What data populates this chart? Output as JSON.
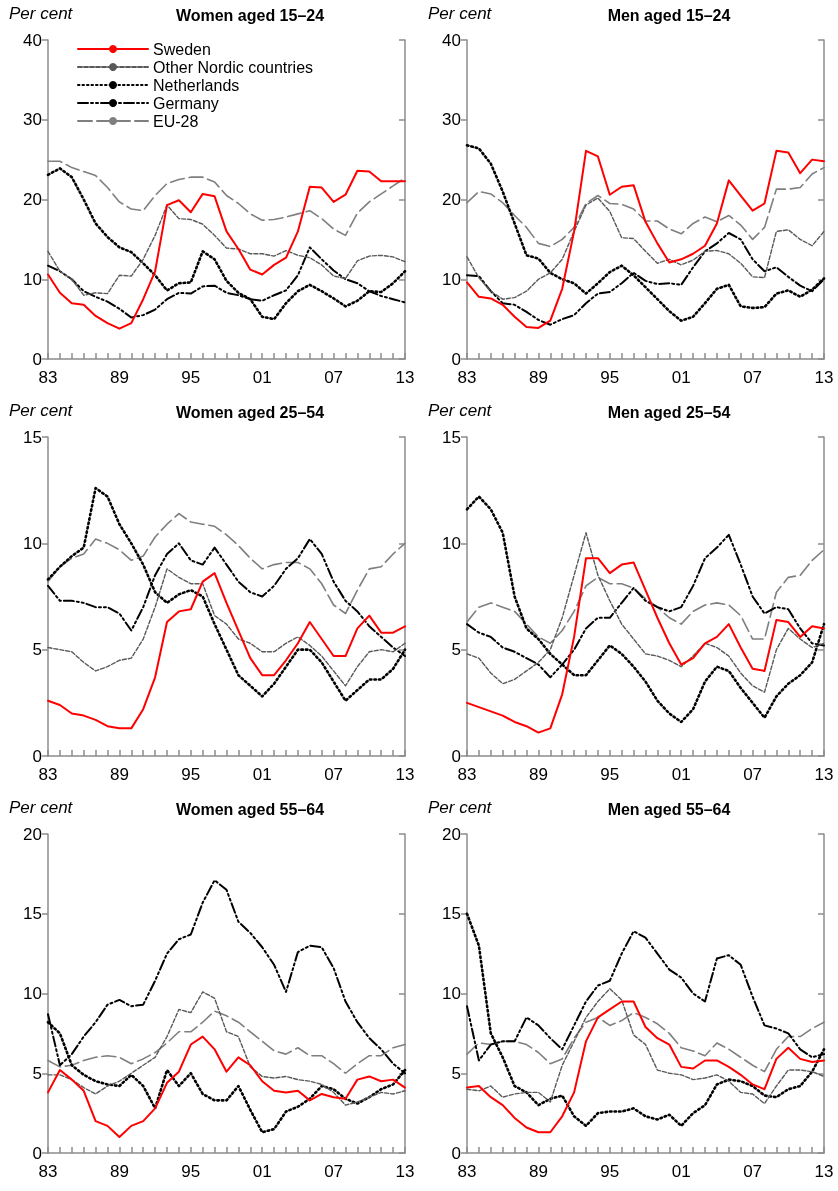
{
  "chart_data": [
    {
      "type": "line",
      "title": "Women aged 15–24",
      "ylabel": "Per cent",
      "categories": [
        "83",
        null,
        null,
        null,
        null,
        null,
        "89",
        null,
        null,
        null,
        null,
        null,
        "95",
        null,
        null,
        null,
        null,
        null,
        "01",
        null,
        null,
        null,
        null,
        null,
        "07",
        null,
        null,
        null,
        null,
        null,
        "13"
      ],
      "ylim": [
        0,
        40
      ],
      "yticks": [
        0,
        10,
        20,
        30,
        40
      ],
      "grid": false,
      "legend": "top left",
      "marker": "none",
      "series": [
        {
          "name": "Sweden",
          "color": "#ff0000",
          "line_style": "solid",
          "values": [
            10.6,
            8.3,
            7.0,
            6.8,
            5.4,
            4.5,
            3.8,
            4.5,
            7.5,
            11,
            19.3,
            19.9,
            18.4,
            20.7,
            20.4,
            16,
            13.8,
            11.2,
            10.6,
            11.8,
            12.7,
            16,
            21.6,
            21.5,
            19.7,
            20.6,
            23.6,
            23.5,
            22.3,
            22.3,
            22.3
          ]
        },
        {
          "name": "Other Nordic countries",
          "color": "#595959",
          "line_style": "dashed",
          "values": [
            13.5,
            11,
            10,
            8.0,
            8.3,
            8.2,
            10.5,
            10.4,
            12.5,
            15.5,
            19.3,
            17.6,
            17.5,
            16.9,
            15.5,
            13.9,
            13.8,
            13.2,
            13.2,
            12.9,
            13.6,
            13.0,
            12.7,
            11.8,
            10.4,
            10.1,
            12.3,
            12.9,
            13.0,
            12.8,
            12.2
          ]
        },
        {
          "name": "Netherlands",
          "color": "#000000",
          "line_style": "dotted",
          "values": [
            23.1,
            23.9,
            22.8,
            20,
            17,
            15.3,
            14,
            13.4,
            12,
            10.5,
            8.6,
            9.5,
            9.6,
            13.5,
            12.5,
            9.8,
            8.3,
            7.5,
            5.3,
            5.0,
            7.0,
            8.5,
            9.3,
            8.5,
            7.6,
            6.6,
            7.3,
            8.5,
            8.4,
            9.5,
            11
          ]
        },
        {
          "name": "Germany",
          "color": "#000000",
          "line_style": "dashdot",
          "values": [
            11.7,
            11,
            10,
            8.5,
            7.8,
            7.2,
            6.3,
            5.2,
            5.5,
            6.2,
            7.5,
            8.3,
            8.2,
            9.1,
            9.2,
            8.3,
            8.0,
            7.5,
            7.3,
            8.0,
            8.6,
            10.5,
            14,
            12.5,
            11.1,
            10.0,
            9.5,
            8.5,
            7.9,
            7.5,
            7.1
          ]
        },
        {
          "name": "EU-28",
          "color": "#7f7f7f",
          "line_style": "longdash",
          "values": [
            24.8,
            24.8,
            24,
            23.5,
            23,
            21.5,
            19.7,
            18.8,
            18.6,
            20.5,
            22,
            22.5,
            22.8,
            22.8,
            22.2,
            20.5,
            19.5,
            18.2,
            17.4,
            17.5,
            17.8,
            18.2,
            18.6,
            17.6,
            16.3,
            15.5,
            18.3,
            19.7,
            20.7,
            21.7,
            22.7
          ]
        }
      ]
    },
    {
      "type": "line",
      "title": "Men aged 15–24",
      "ylabel": "Per cent",
      "categories": [
        "83",
        null,
        null,
        null,
        null,
        null,
        "89",
        null,
        null,
        null,
        null,
        null,
        "95",
        null,
        null,
        null,
        null,
        null,
        "01",
        null,
        null,
        null,
        null,
        null,
        "07",
        null,
        null,
        null,
        null,
        null,
        "13"
      ],
      "ylim": [
        0,
        40
      ],
      "yticks": [
        0,
        10,
        20,
        30,
        40
      ],
      "grid": false,
      "marker": "none",
      "series": [
        {
          "color": "#ff0000",
          "line_style": "solid",
          "values": [
            9.6,
            7.8,
            7.6,
            6.8,
            5.3,
            4.0,
            3.9,
            4.8,
            8.8,
            16,
            26.1,
            25.4,
            20.6,
            21.6,
            21.8,
            17.2,
            14.5,
            12.1,
            12.5,
            13.2,
            14.2,
            17,
            22.4,
            20.5,
            18.6,
            19.5,
            26.1,
            25.9,
            23.3,
            25,
            24.8
          ]
        },
        {
          "color": "#595959",
          "line_style": "dashed",
          "values": [
            12.8,
            10.2,
            8.5,
            7.5,
            7.7,
            8.5,
            10,
            10.8,
            12.5,
            16,
            19.3,
            20.2,
            18.5,
            15.2,
            15.1,
            13.5,
            12.0,
            12.5,
            11.8,
            12.4,
            13.5,
            13.6,
            13.2,
            12,
            10.3,
            10.2,
            16,
            16.2,
            15,
            14.2,
            16
          ]
        },
        {
          "color": "#000000",
          "line_style": "dotted",
          "values": [
            26.8,
            26.4,
            24.5,
            21,
            17,
            13,
            12.6,
            10.8,
            10,
            9.5,
            8.2,
            9.5,
            10.9,
            11.7,
            10.5,
            9,
            7.5,
            6.0,
            4.8,
            5.3,
            7.0,
            8.8,
            9.3,
            6.6,
            6.4,
            6.5,
            8.2,
            8.6,
            7.8,
            8.7,
            10.1
          ]
        },
        {
          "color": "#000000",
          "line_style": "dashdot",
          "values": [
            10.5,
            10.4,
            8.5,
            7.0,
            6.8,
            5.9,
            4.9,
            4.3,
            5.0,
            5.5,
            7.0,
            8.2,
            8.4,
            9.5,
            10.8,
            9.8,
            9.4,
            9.5,
            9.3,
            11.5,
            13.5,
            14.5,
            15.8,
            15,
            12.5,
            11,
            11.5,
            10.3,
            9.2,
            8.5,
            10
          ]
        },
        {
          "color": "#7f7f7f",
          "line_style": "longdash",
          "values": [
            19.6,
            21,
            20.7,
            19.6,
            18,
            16.5,
            14.5,
            14.1,
            15,
            16.5,
            19.5,
            20.5,
            19.5,
            19.4,
            18.8,
            17.3,
            17.3,
            16.3,
            15.7,
            17,
            17.8,
            17.2,
            18,
            16.8,
            15.0,
            16.5,
            21.3,
            21.3,
            21.5,
            23.2,
            24
          ]
        }
      ]
    },
    {
      "type": "line",
      "title": "Women aged 25–54",
      "ylabel": "Per cent",
      "categories": [
        "83",
        null,
        null,
        null,
        null,
        null,
        "89",
        null,
        null,
        null,
        null,
        null,
        "95",
        null,
        null,
        null,
        null,
        null,
        "01",
        null,
        null,
        null,
        null,
        null,
        "07",
        null,
        null,
        null,
        null,
        null,
        "13"
      ],
      "ylim": [
        0,
        15
      ],
      "yticks": [
        0,
        5,
        10,
        15
      ],
      "grid": false,
      "marker": "none",
      "series": [
        {
          "color": "#ff0000",
          "line_style": "solid",
          "values": [
            2.6,
            2.4,
            2.0,
            1.9,
            1.7,
            1.4,
            1.3,
            1.3,
            2.2,
            3.7,
            6.3,
            6.8,
            6.9,
            8.2,
            8.6,
            7.2,
            5.9,
            4.6,
            3.8,
            3.8,
            4.5,
            5.3,
            6.3,
            5.5,
            4.7,
            4.7,
            6.0,
            6.6,
            5.8,
            5.8,
            6.1
          ]
        },
        {
          "color": "#595959",
          "line_style": "dashed",
          "values": [
            5.1,
            5.0,
            4.9,
            4.4,
            4.0,
            4.2,
            4.5,
            4.6,
            5.5,
            7.0,
            8.8,
            8.4,
            8.1,
            8.1,
            6.6,
            6.2,
            5.5,
            5.3,
            4.9,
            4.9,
            5.3,
            5.6,
            5.2,
            4.7,
            4.0,
            3.3,
            4.2,
            4.9,
            5.0,
            4.9,
            5.3
          ]
        },
        {
          "color": "#000000",
          "line_style": "dotted",
          "values": [
            8.3,
            8.9,
            9.4,
            9.8,
            12.6,
            12.2,
            10.9,
            10,
            9,
            7.7,
            7.2,
            7.6,
            7.8,
            7.5,
            6.2,
            5.0,
            3.8,
            3.3,
            2.8,
            3.4,
            4.2,
            5.0,
            5.0,
            4.4,
            3.5,
            2.6,
            3.1,
            3.6,
            3.6,
            4.1,
            5.0
          ]
        },
        {
          "color": "#000000",
          "line_style": "dashdot",
          "values": [
            8.0,
            7.3,
            7.3,
            7.2,
            7.0,
            7.0,
            6.7,
            5.9,
            7.0,
            8.5,
            9.5,
            10.0,
            9.2,
            9.0,
            9.8,
            9.0,
            8.2,
            7.7,
            7.5,
            8.0,
            8.8,
            9.3,
            10.2,
            9.5,
            8.2,
            7.3,
            6.8,
            6.1,
            5.6,
            5.1,
            4.7
          ]
        },
        {
          "color": "#7f7f7f",
          "line_style": "longdash",
          "values": [
            8.2,
            8.9,
            9.3,
            9.5,
            10.2,
            10.0,
            9.7,
            9.2,
            9.4,
            10.3,
            10.9,
            11.4,
            11.0,
            10.9,
            10.8,
            10.4,
            9.9,
            9.3,
            8.8,
            9.0,
            9.1,
            9.1,
            8.8,
            8.1,
            7.1,
            6.7,
            7.8,
            8.8,
            8.9,
            9.5,
            10.0
          ]
        }
      ]
    },
    {
      "type": "line",
      "title": "Men aged 25–54",
      "ylabel": "Per cent",
      "categories": [
        "83",
        null,
        null,
        null,
        null,
        null,
        "89",
        null,
        null,
        null,
        null,
        null,
        "95",
        null,
        null,
        null,
        null,
        null,
        "01",
        null,
        null,
        null,
        null,
        null,
        "07",
        null,
        null,
        null,
        null,
        null,
        "13"
      ],
      "ylim": [
        0,
        15
      ],
      "yticks": [
        0,
        5,
        10,
        15
      ],
      "grid": false,
      "marker": "none",
      "series": [
        {
          "color": "#ff0000",
          "line_style": "solid",
          "values": [
            2.5,
            2.3,
            2.1,
            1.9,
            1.6,
            1.4,
            1.1,
            1.3,
            2.9,
            5.6,
            9.3,
            9.3,
            8.6,
            9.0,
            9.1,
            7.8,
            6.5,
            5.3,
            4.3,
            4.6,
            5.3,
            5.6,
            6.2,
            5.1,
            4.1,
            4.0,
            6.4,
            6.3,
            5.6,
            6.1,
            6.0
          ]
        },
        {
          "color": "#595959",
          "line_style": "dashed",
          "values": [
            4.8,
            4.6,
            3.9,
            3.4,
            3.6,
            4.0,
            4.4,
            5.0,
            6.5,
            8.5,
            10.5,
            8.5,
            7.3,
            6.2,
            5.5,
            4.8,
            4.7,
            4.5,
            4.2,
            4.7,
            5.3,
            5.1,
            4.7,
            3.9,
            3.3,
            3.0,
            5.0,
            6.0,
            5.5,
            5.1,
            5.3
          ]
        },
        {
          "color": "#000000",
          "line_style": "dotted",
          "values": [
            11.6,
            12.2,
            11.6,
            10.5,
            7.5,
            6.0,
            5.5,
            4.8,
            4.3,
            3.8,
            3.8,
            4.5,
            5.2,
            4.8,
            4.2,
            3.5,
            2.6,
            2.0,
            1.6,
            2.2,
            3.5,
            4.2,
            4.0,
            3.2,
            2.5,
            1.8,
            2.8,
            3.4,
            3.8,
            4.4,
            6.2
          ]
        },
        {
          "color": "#000000",
          "line_style": "dashdot",
          "values": [
            6.2,
            5.8,
            5.6,
            5.1,
            4.9,
            4.6,
            4.3,
            3.7,
            4.3,
            5.0,
            6.0,
            6.5,
            6.5,
            7.2,
            7.9,
            7.3,
            7.0,
            6.8,
            7.0,
            8.0,
            9.3,
            9.8,
            10.4,
            9.0,
            7.5,
            6.7,
            7.0,
            6.9,
            6.0,
            5.3,
            5.2
          ]
        },
        {
          "color": "#7f7f7f",
          "line_style": "longdash",
          "values": [
            6.3,
            7.0,
            7.2,
            7.0,
            6.8,
            6.2,
            5.6,
            5.3,
            5.9,
            6.8,
            8.0,
            8.4,
            8.1,
            8.1,
            7.9,
            7.4,
            7.0,
            6.5,
            6.2,
            6.8,
            7.1,
            7.2,
            7.1,
            6.6,
            5.5,
            5.5,
            7.7,
            8.4,
            8.5,
            9.2,
            9.7
          ]
        }
      ]
    },
    {
      "type": "line",
      "title": "Women aged 55–64",
      "ylabel": "Per cent",
      "categories": [
        "83",
        null,
        null,
        null,
        null,
        null,
        "89",
        null,
        null,
        null,
        null,
        null,
        "95",
        null,
        null,
        null,
        null,
        null,
        "01",
        null,
        null,
        null,
        null,
        null,
        "07",
        null,
        null,
        null,
        null,
        null,
        "13"
      ],
      "ylim": [
        0,
        20
      ],
      "yticks": [
        0,
        5,
        10,
        15,
        20
      ],
      "grid": false,
      "marker": "none",
      "series": [
        {
          "color": "#ff0000",
          "line_style": "solid",
          "values": [
            3.8,
            5.2,
            4.6,
            3.9,
            2.0,
            1.7,
            1.0,
            1.7,
            2.0,
            2.8,
            4.4,
            5.1,
            6.8,
            7.3,
            6.5,
            5.1,
            6.0,
            5.5,
            4.5,
            3.9,
            3.8,
            3.9,
            3.3,
            3.7,
            3.5,
            3.4,
            4.6,
            4.8,
            4.5,
            4.6,
            4.1
          ]
        },
        {
          "color": "#595959",
          "line_style": "dashed",
          "values": [
            4.9,
            4.9,
            4.6,
            4.1,
            3.7,
            4.2,
            4.5,
            5.0,
            5.5,
            6.0,
            7.3,
            9.0,
            8.8,
            10.1,
            9.7,
            7.6,
            7.3,
            5.4,
            4.8,
            4.7,
            4.8,
            4.6,
            4.5,
            4.3,
            3.8,
            3.0,
            3.2,
            3.5,
            3.8,
            3.7,
            3.9
          ]
        },
        {
          "color": "#000000",
          "line_style": "dotted",
          "values": [
            8.2,
            7.5,
            5.5,
            4.9,
            4.5,
            4.3,
            4.2,
            4.9,
            4.2,
            2.8,
            5.2,
            4.2,
            5.0,
            3.7,
            3.3,
            3.3,
            4.2,
            2.7,
            1.3,
            1.5,
            2.6,
            2.9,
            3.4,
            4.2,
            4.0,
            3.4,
            3.1,
            3.5,
            4.0,
            4.3,
            5.2
          ]
        },
        {
          "color": "#000000",
          "line_style": "dashdot",
          "values": [
            8.7,
            5.5,
            6.2,
            7.3,
            8.2,
            9.3,
            9.6,
            9.2,
            9.3,
            10.8,
            12.5,
            13.4,
            13.7,
            15.7,
            17.1,
            16.5,
            14.5,
            13.8,
            12.9,
            11.8,
            10.1,
            12.6,
            13,
            12.9,
            11.6,
            9.5,
            8.2,
            7.2,
            6.5,
            5.6,
            5.0
          ]
        },
        {
          "color": "#7f7f7f",
          "line_style": "longdash",
          "values": [
            5.8,
            5.4,
            5.5,
            5.8,
            6.0,
            6.1,
            6.0,
            5.6,
            5.9,
            6.3,
            6.9,
            7.6,
            7.6,
            8.2,
            8.9,
            8.6,
            8.2,
            7.6,
            7.0,
            6.4,
            6.2,
            6.6,
            6.1,
            6.1,
            5.6,
            5.0,
            5.6,
            6.1,
            6.1,
            6.6,
            6.8
          ]
        }
      ]
    },
    {
      "type": "line",
      "title": "Men aged 55–64",
      "ylabel": "Per cent",
      "categories": [
        "83",
        null,
        null,
        null,
        null,
        null,
        "89",
        null,
        null,
        null,
        null,
        null,
        "95",
        null,
        null,
        null,
        null,
        null,
        "01",
        null,
        null,
        null,
        null,
        null,
        "07",
        null,
        null,
        null,
        null,
        null,
        "13"
      ],
      "ylim": [
        0,
        20
      ],
      "yticks": [
        0,
        5,
        10,
        15,
        20
      ],
      "grid": false,
      "marker": "none",
      "series": [
        {
          "color": "#ff0000",
          "line_style": "solid",
          "values": [
            4.1,
            4.2,
            3.5,
            3.0,
            2.2,
            1.6,
            1.3,
            1.3,
            2.3,
            3.8,
            7.0,
            8.5,
            9.0,
            9.5,
            9.5,
            7.9,
            7.2,
            6.8,
            5.4,
            5.3,
            5.8,
            5.8,
            5.4,
            4.9,
            4.3,
            4.0,
            5.9,
            6.6,
            5.9,
            5.7,
            5.8
          ]
        },
        {
          "color": "#595959",
          "line_style": "dashed",
          "values": [
            4.0,
            3.9,
            4.2,
            3.5,
            3.7,
            3.8,
            3.8,
            3.2,
            5.5,
            7.0,
            8.5,
            9.5,
            10.3,
            9.6,
            7.4,
            6.8,
            5.2,
            5.0,
            4.9,
            4.6,
            4.7,
            4.9,
            4.5,
            3.8,
            3.7,
            3.1,
            4.2,
            5.2,
            5.2,
            5.1,
            4.8
          ]
        },
        {
          "color": "#000000",
          "line_style": "dotted",
          "values": [
            15.0,
            13.0,
            7.5,
            6.0,
            4.2,
            3.8,
            3.0,
            3.4,
            3.6,
            2.3,
            1.7,
            2.5,
            2.6,
            2.6,
            2.8,
            2.3,
            2.1,
            2.4,
            1.7,
            2.5,
            3.0,
            4.3,
            4.6,
            4.5,
            4.2,
            3.6,
            3.5,
            4.0,
            4.2,
            5.1,
            6.5
          ]
        },
        {
          "color": "#000000",
          "line_style": "dashdot",
          "values": [
            9.2,
            5.8,
            6.8,
            7.0,
            7.0,
            8.5,
            8.0,
            7.2,
            6.5,
            8.0,
            9.5,
            10.5,
            10.8,
            12.5,
            13.9,
            13.5,
            12.5,
            11.5,
            11.0,
            10.0,
            9.5,
            12.2,
            12.4,
            11.8,
            9.8,
            8.0,
            7.8,
            7.5,
            6.5,
            6.0,
            6.2
          ]
        },
        {
          "color": "#7f7f7f",
          "line_style": "longdash",
          "values": [
            6.2,
            6.9,
            6.8,
            7.0,
            7.0,
            6.8,
            6.3,
            5.6,
            5.9,
            7.2,
            8.2,
            8.5,
            8.0,
            8.3,
            8.8,
            8.5,
            8.1,
            7.5,
            6.6,
            6.4,
            6.1,
            6.9,
            6.5,
            6.0,
            5.5,
            5.1,
            6.5,
            7.3,
            7.3,
            7.8,
            8.2
          ]
        }
      ]
    }
  ]
}
